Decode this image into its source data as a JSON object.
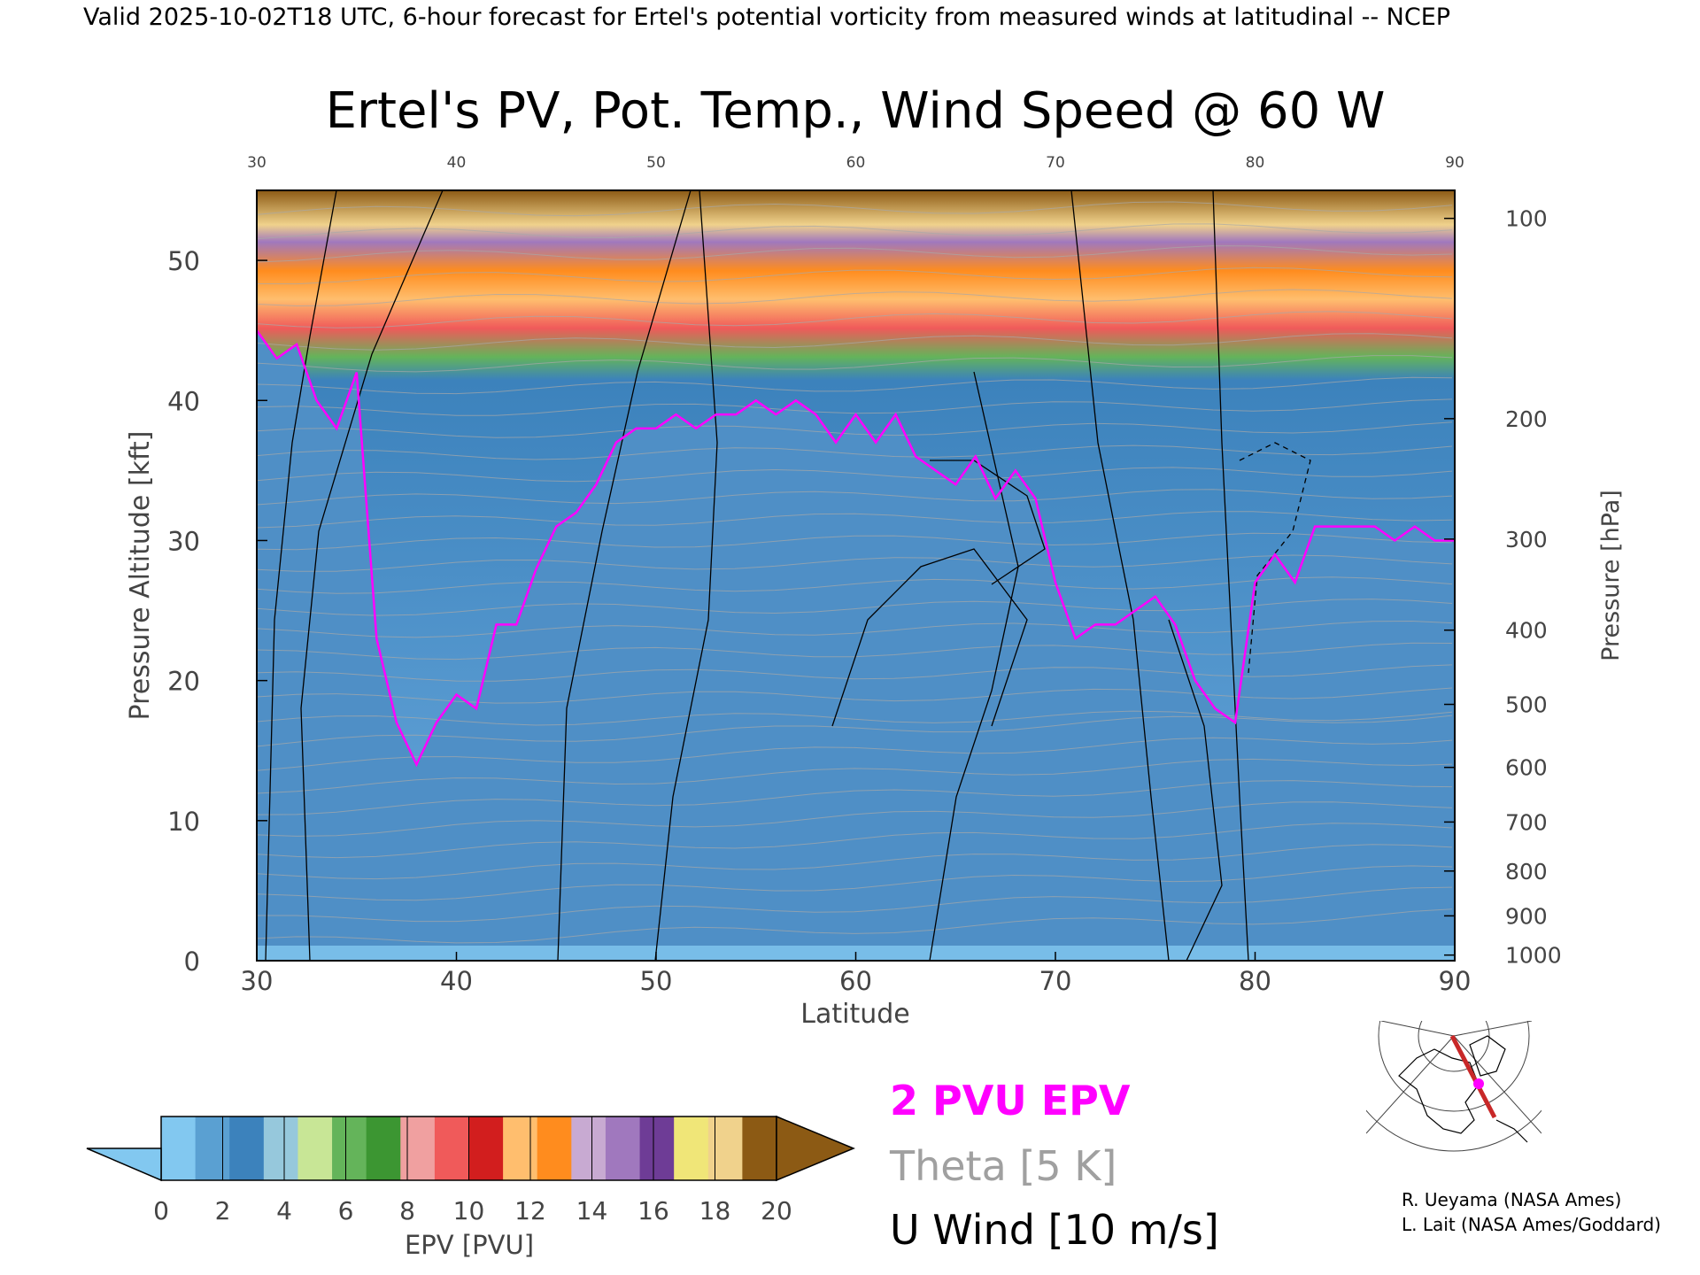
{
  "header": {
    "valid_line": "Valid 2025-10-02T18 UTC, 6-hour forecast for Ertel's potential vorticity from measured winds at latitudinal -- NCEP"
  },
  "chart_data": {
    "type": "heatmap",
    "title": "Ertel's PV, Pot. Temp., Wind Speed @ 60 W",
    "xlabel": "Latitude",
    "ylabel_left": "Pressure Altitude [kft]",
    "ylabel_right": "Pressure [hPa]",
    "xlim": [
      30,
      90
    ],
    "ylim": [
      0,
      55
    ],
    "x_ticks": [
      30,
      40,
      50,
      60,
      70,
      80,
      90
    ],
    "x_ticks_top": [
      30,
      40,
      50,
      60,
      70,
      80,
      90
    ],
    "y_ticks_left": [
      0,
      10,
      20,
      30,
      40,
      50
    ],
    "y_ticks_right": [
      {
        "label": "100",
        "kft": 53.0
      },
      {
        "label": "200",
        "kft": 38.7
      },
      {
        "label": "300",
        "kft": 30.1
      },
      {
        "label": "400",
        "kft": 23.6
      },
      {
        "label": "500",
        "kft": 18.3
      },
      {
        "label": "600",
        "kft": 13.8
      },
      {
        "label": "700",
        "kft": 9.9
      },
      {
        "label": "800",
        "kft": 6.4
      },
      {
        "label": "900",
        "kft": 3.2
      },
      {
        "label": "1000",
        "kft": 0.4
      }
    ],
    "tropopause_2pvu": [
      [
        30,
        45
      ],
      [
        31,
        43
      ],
      [
        32,
        44
      ],
      [
        33,
        40
      ],
      [
        34,
        38
      ],
      [
        35,
        42
      ],
      [
        36,
        23
      ],
      [
        37,
        17
      ],
      [
        38,
        14
      ],
      [
        39,
        17
      ],
      [
        40,
        19
      ],
      [
        41,
        18
      ],
      [
        42,
        24
      ],
      [
        43,
        24
      ],
      [
        44,
        28
      ],
      [
        45,
        31
      ],
      [
        46,
        32
      ],
      [
        47,
        34
      ],
      [
        48,
        37
      ],
      [
        49,
        38
      ],
      [
        50,
        38
      ],
      [
        51,
        39
      ],
      [
        52,
        38
      ],
      [
        53,
        39
      ],
      [
        54,
        39
      ],
      [
        55,
        40
      ],
      [
        56,
        39
      ],
      [
        57,
        40
      ],
      [
        58,
        39
      ],
      [
        59,
        37
      ],
      [
        60,
        39
      ],
      [
        61,
        37
      ],
      [
        62,
        39
      ],
      [
        63,
        36
      ],
      [
        64,
        35
      ],
      [
        65,
        34
      ],
      [
        66,
        36
      ],
      [
        67,
        33
      ],
      [
        68,
        35
      ],
      [
        69,
        33
      ],
      [
        70,
        27
      ],
      [
        71,
        23
      ],
      [
        72,
        24
      ],
      [
        73,
        24
      ],
      [
        74,
        25
      ],
      [
        75,
        26
      ],
      [
        76,
        24
      ],
      [
        77,
        20
      ],
      [
        78,
        18
      ],
      [
        79,
        17
      ],
      [
        80,
        27
      ],
      [
        81,
        29
      ],
      [
        82,
        27
      ],
      [
        83,
        31
      ],
      [
        84,
        31
      ],
      [
        85,
        31
      ],
      [
        86,
        31
      ],
      [
        87,
        30
      ],
      [
        88,
        31
      ],
      [
        89,
        30
      ],
      [
        90,
        30
      ]
    ],
    "pv_colorbar": {
      "label": "EPV [PVU]",
      "ticks": [
        0,
        2,
        4,
        6,
        8,
        10,
        12,
        14,
        16,
        18,
        20
      ],
      "colors": [
        "#82c8f0",
        "#5aa0d2",
        "#3c82bc",
        "#96c8dc",
        "#c8e696",
        "#64b45a",
        "#3c9632",
        "#f0a0a0",
        "#f05a5a",
        "#d21e1e",
        "#ffbe6e",
        "#ff8c1e",
        "#c8aad2",
        "#a078be",
        "#6e3c96",
        "#f0e678",
        "#f0d28c",
        "#8c5a14"
      ]
    },
    "legend": [
      {
        "label": "2 PVU EPV",
        "color": "#ff00ff"
      },
      {
        "label": "Theta [5 K]",
        "color": "#a0a0a0"
      },
      {
        "label": "U Wind [10 m/s]",
        "color": "#000000"
      }
    ]
  },
  "credits": [
    "R. Ueyama (NASA Ames)",
    "L. Lait (NASA Ames/Goddard)"
  ]
}
